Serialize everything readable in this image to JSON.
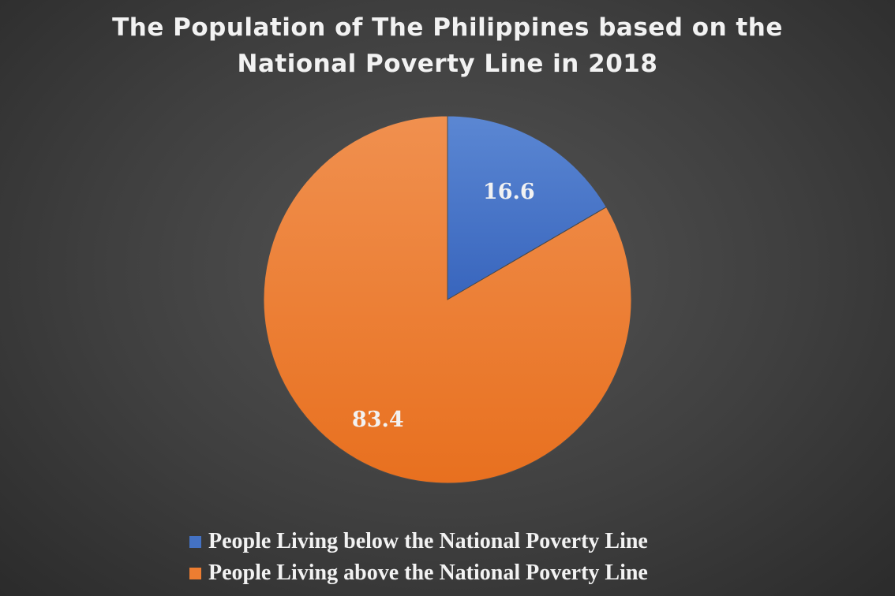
{
  "chart_data": {
    "type": "pie",
    "title_lines": [
      "The Population of The Philippines based on the",
      "National Poverty Line in 2018"
    ],
    "categories": [
      "People Living below the National Poverty Line",
      "People Living above the National Poverty Line"
    ],
    "values": [
      16.6,
      83.4
    ],
    "data_labels": [
      "16.6",
      "83.4"
    ],
    "colors": [
      "#4472c4",
      "#ed7d31"
    ],
    "legend_position": "bottom",
    "start_angle": "12 o'clock, clockwise"
  }
}
